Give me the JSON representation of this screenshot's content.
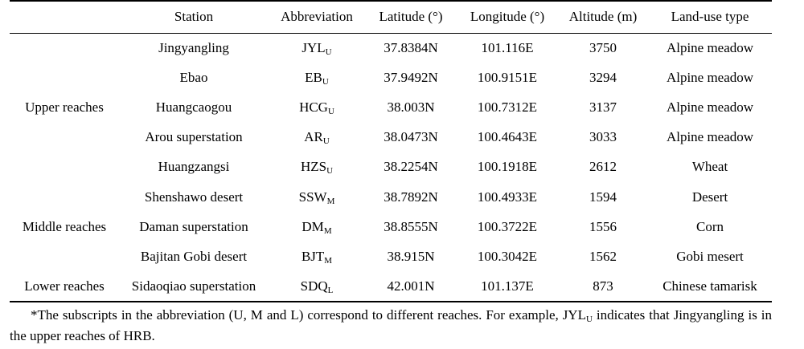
{
  "table": {
    "headers": [
      "",
      "Station",
      "Abbreviation",
      "Latitude (°)",
      "Longitude (°)",
      "Altitude (m)",
      "Land-use type"
    ],
    "groups": [
      {
        "label": "Upper reaches",
        "rowspan": 5
      },
      {
        "label": "Middle reaches",
        "rowspan": 3
      },
      {
        "label": "Lower reaches",
        "rowspan": 1
      }
    ],
    "rows": [
      {
        "station": "Jingyangling",
        "abbr": "JYL",
        "abbr_sub": "U",
        "lat": "37.8384N",
        "lon": "101.116E",
        "alt": "3750",
        "land": "Alpine meadow"
      },
      {
        "station": "Ebao",
        "abbr": "EB",
        "abbr_sub": "U",
        "lat": "37.9492N",
        "lon": "100.9151E",
        "alt": "3294",
        "land": "Alpine meadow"
      },
      {
        "station": "Huangcaogou",
        "abbr": "HCG",
        "abbr_sub": "U",
        "lat": "38.003N",
        "lon": "100.7312E",
        "alt": "3137",
        "land": "Alpine meadow"
      },
      {
        "station": "Arou superstation",
        "abbr": "AR",
        "abbr_sub": "U",
        "lat": "38.0473N",
        "lon": "100.4643E",
        "alt": "3033",
        "land": "Alpine meadow"
      },
      {
        "station": "Huangzangsi",
        "abbr": "HZS",
        "abbr_sub": "U",
        "lat": "38.2254N",
        "lon": "100.1918E",
        "alt": "2612",
        "land": "Wheat"
      },
      {
        "station": "Shenshawo desert",
        "abbr": "SSW",
        "abbr_sub": "M",
        "lat": "38.7892N",
        "lon": "100.4933E",
        "alt": "1594",
        "land": "Desert"
      },
      {
        "station": "Daman superstation",
        "abbr": "DM",
        "abbr_sub": "M",
        "lat": "38.8555N",
        "lon": "100.3722E",
        "alt": "1556",
        "land": "Corn"
      },
      {
        "station": "Bajitan Gobi desert",
        "abbr": "BJT",
        "abbr_sub": "M",
        "lat": "38.915N",
        "lon": "100.3042E",
        "alt": "1562",
        "land": "Gobi mesert"
      },
      {
        "station": "Sidaoqiao superstation",
        "abbr": "SDQ",
        "abbr_sub": "L",
        "lat": "42.001N",
        "lon": "101.137E",
        "alt": "873",
        "land": "Chinese tamarisk"
      }
    ]
  },
  "footnote": {
    "part1": "*The subscripts in the abbreviation (U, M and L) correspond to different reaches. For example, JYL",
    "sub": "U",
    "part2": " indicates that Jingyangling is in the upper reaches of HRB."
  }
}
